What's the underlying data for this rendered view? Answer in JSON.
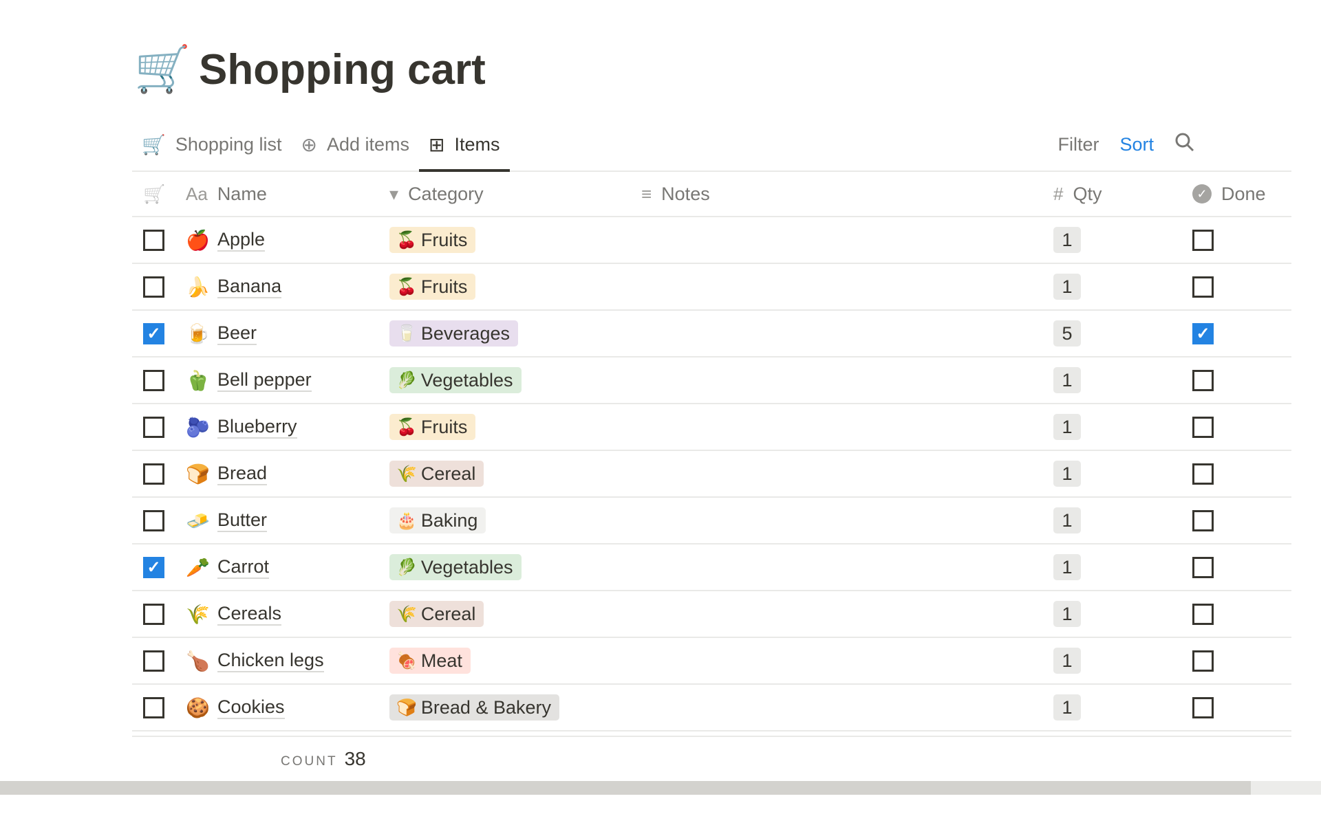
{
  "page": {
    "icon": "🛒",
    "title": "Shopping cart"
  },
  "tabs": [
    {
      "icon": "🛒",
      "label": "Shopping list"
    },
    {
      "icon": "⊕",
      "label": "Add items"
    },
    {
      "icon": "⊞",
      "label": "Items",
      "active": true
    }
  ],
  "toolbar": {
    "filter": "Filter",
    "sort": "Sort",
    "search_icon": "search-icon",
    "sort_color": "#2383e2"
  },
  "columns": {
    "cart_icon": "🛒",
    "name_icon": "Aa",
    "name": "Name",
    "category_icon": "▾",
    "category": "Category",
    "notes_icon": "≡",
    "notes": "Notes",
    "qty_icon": "#",
    "qty": "Qty",
    "done_icon": "✓",
    "done": "Done"
  },
  "rows": [
    {
      "checked": false,
      "emoji": "🍎",
      "name": "Apple",
      "cat_emoji": "🍒",
      "category": "Fruits",
      "cat_color": "#fbeccf",
      "qty": "1",
      "done": false
    },
    {
      "checked": false,
      "emoji": "🍌",
      "name": "Banana",
      "cat_emoji": "🍒",
      "category": "Fruits",
      "cat_color": "#fbeccf",
      "qty": "1",
      "done": false
    },
    {
      "checked": true,
      "emoji": "🍺",
      "name": "Beer",
      "cat_emoji": "🥛",
      "category": "Beverages",
      "cat_color": "#e8deee",
      "qty": "5",
      "done": true
    },
    {
      "checked": false,
      "emoji": "🫑",
      "name": "Bell pepper",
      "cat_emoji": "🥬",
      "category": "Vegetables",
      "cat_color": "#dbeddb",
      "qty": "1",
      "done": false
    },
    {
      "checked": false,
      "emoji": "🫐",
      "name": "Blueberry",
      "cat_emoji": "🍒",
      "category": "Fruits",
      "cat_color": "#fbeccf",
      "qty": "1",
      "done": false
    },
    {
      "checked": false,
      "emoji": "🍞",
      "name": "Bread",
      "cat_emoji": "🌾",
      "category": "Cereal",
      "cat_color": "#eee0da",
      "qty": "1",
      "done": false
    },
    {
      "checked": false,
      "emoji": "🧈",
      "name": "Butter",
      "cat_emoji": "🎂",
      "category": "Baking",
      "cat_color": "#f1f1ef",
      "qty": "1",
      "done": false
    },
    {
      "checked": true,
      "emoji": "🥕",
      "name": "Carrot",
      "cat_emoji": "🥬",
      "category": "Vegetables",
      "cat_color": "#dbeddb",
      "qty": "1",
      "done": false
    },
    {
      "checked": false,
      "emoji": "🌾",
      "name": "Cereals",
      "cat_emoji": "🌾",
      "category": "Cereal",
      "cat_color": "#eee0da",
      "qty": "1",
      "done": false
    },
    {
      "checked": false,
      "emoji": "🍗",
      "name": "Chicken legs",
      "cat_emoji": "🍖",
      "category": "Meat",
      "cat_color": "#ffe2dd",
      "qty": "1",
      "done": false
    },
    {
      "checked": false,
      "emoji": "🍪",
      "name": "Cookies",
      "cat_emoji": "🍞",
      "category": "Bread & Bakery",
      "cat_color": "#e3e2e0",
      "qty": "1",
      "done": false
    }
  ],
  "footer": {
    "count_label": "COUNT",
    "count_value": "38"
  }
}
